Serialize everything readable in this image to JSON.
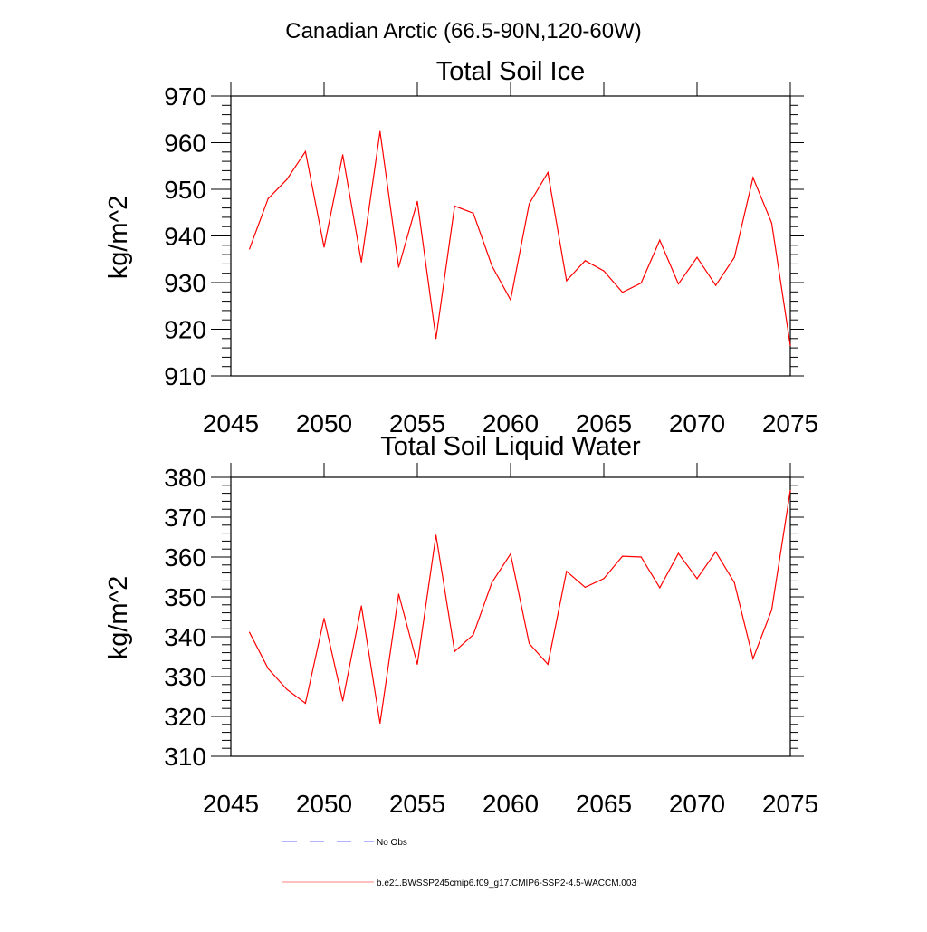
{
  "suptitle": "Canadian Arctic (66.5-90N,120-60W)",
  "colors": {
    "series": "#ff0000",
    "obs": "#6666ff",
    "axis": "#000000"
  },
  "legend": [
    {
      "label": "No Obs",
      "style": "dashed",
      "color": "#6666ff"
    },
    {
      "label": "b.e21.BWSSP245cmip6.f09_g17.CMIP6-SSP2-4.5-WACCM.003",
      "style": "solid",
      "color": "#ff0000"
    }
  ],
  "chart_data": [
    {
      "type": "line",
      "title": "Total Soil Ice",
      "ylabel": "kg/m^2",
      "xlabel": "",
      "xlim": [
        2045,
        2075
      ],
      "ylim": [
        910,
        970
      ],
      "xticks": [
        "2045",
        "2050",
        "2055",
        "2060",
        "2065",
        "2070",
        "2075"
      ],
      "yticks": [
        "910",
        "920",
        "930",
        "940",
        "950",
        "960",
        "970"
      ],
      "grid": false,
      "x": [
        2046,
        2047,
        2048,
        2049,
        2050,
        2051,
        2052,
        2053,
        2054,
        2055,
        2056,
        2057,
        2058,
        2059,
        2060,
        2061,
        2062,
        2063,
        2064,
        2065,
        2066,
        2067,
        2068,
        2069,
        2070,
        2071,
        2072,
        2073,
        2074,
        2075
      ],
      "series": [
        {
          "values": [
            937.2,
            948.0,
            952.1,
            958.1,
            937.6,
            957.4,
            934.4,
            962.4,
            933.3,
            947.4,
            918.0,
            946.4,
            944.9,
            933.6,
            926.3,
            946.9,
            953.6,
            930.4,
            934.7,
            932.5,
            927.9,
            929.9,
            939.1,
            929.7,
            935.4,
            929.4,
            935.4,
            952.5,
            942.8,
            916.5
          ]
        }
      ]
    },
    {
      "type": "line",
      "title": "Total Soil Liquid Water",
      "ylabel": "kg/m^2",
      "xlabel": "",
      "xlim": [
        2045,
        2075
      ],
      "ylim": [
        310,
        380
      ],
      "xticks": [
        "2045",
        "2050",
        "2055",
        "2060",
        "2065",
        "2070",
        "2075"
      ],
      "yticks": [
        "310",
        "320",
        "330",
        "340",
        "350",
        "360",
        "370",
        "380"
      ],
      "grid": false,
      "x": [
        2046,
        2047,
        2048,
        2049,
        2050,
        2051,
        2052,
        2053,
        2054,
        2055,
        2056,
        2057,
        2058,
        2059,
        2060,
        2061,
        2062,
        2063,
        2064,
        2065,
        2066,
        2067,
        2068,
        2069,
        2070,
        2071,
        2072,
        2073,
        2074,
        2075
      ],
      "series": [
        {
          "values": [
            341.1,
            332.0,
            326.8,
            323.3,
            344.6,
            323.9,
            347.7,
            318.3,
            350.7,
            333.1,
            365.5,
            336.3,
            340.5,
            353.6,
            360.8,
            338.3,
            333.1,
            356.4,
            352.4,
            354.6,
            360.2,
            360.0,
            352.3,
            360.9,
            354.6,
            361.3,
            353.6,
            334.5,
            346.7,
            376.7
          ]
        }
      ]
    }
  ]
}
